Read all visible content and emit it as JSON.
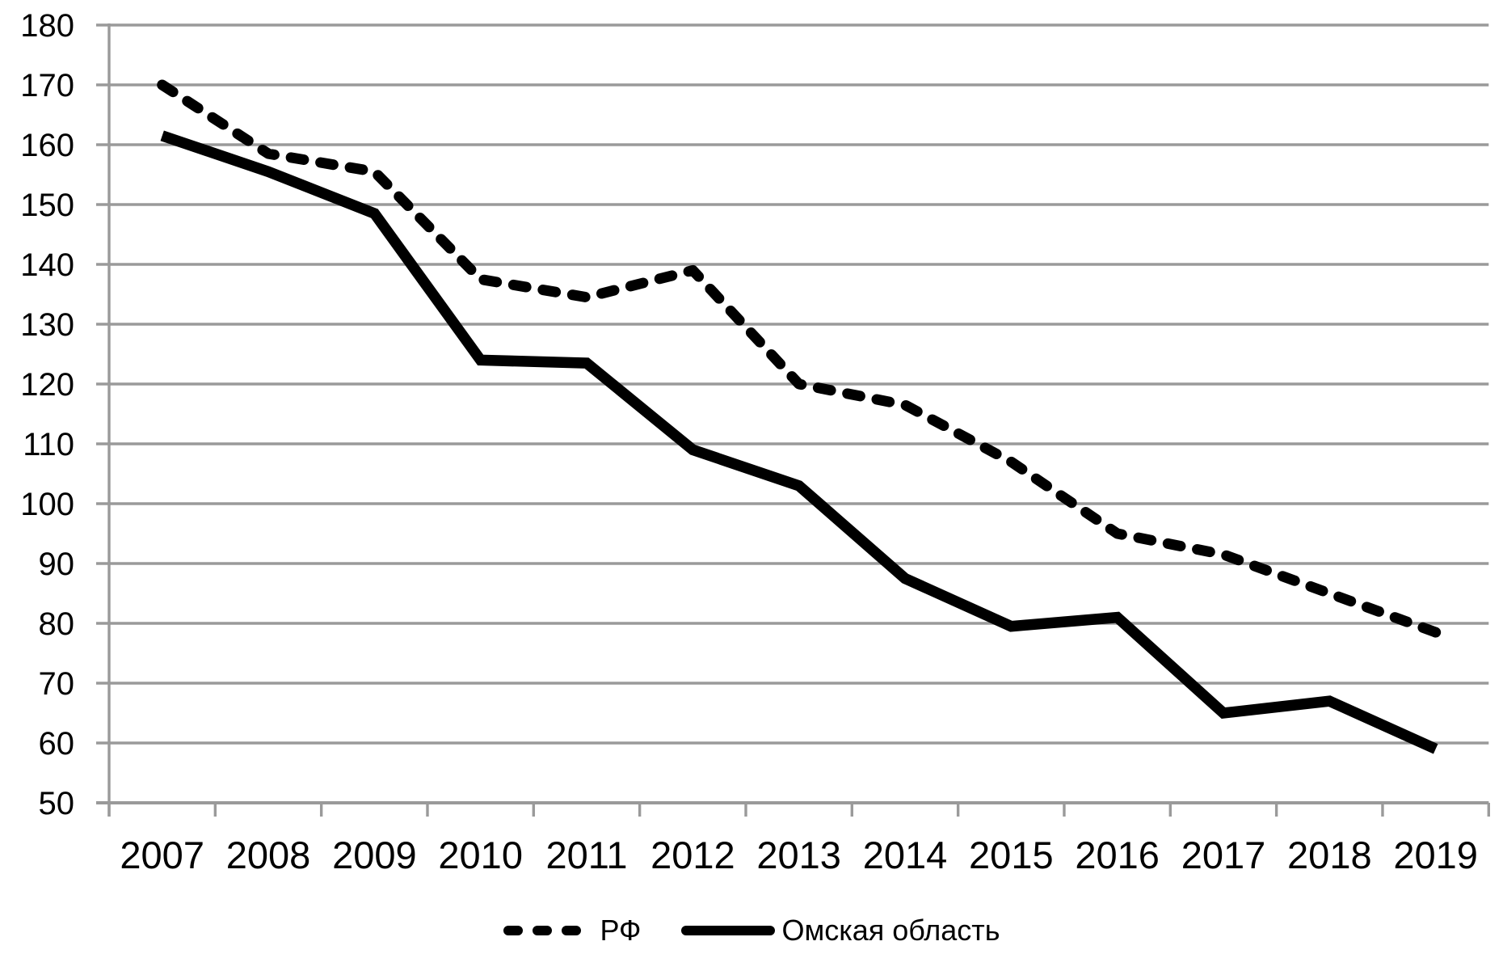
{
  "chart_data": {
    "type": "line",
    "title": "",
    "xlabel": "",
    "ylabel": "",
    "categories": [
      "2007",
      "2008",
      "2009",
      "2010",
      "2011",
      "2012",
      "2013",
      "2014",
      "2015",
      "2016",
      "2017",
      "2018",
      "2019"
    ],
    "series": [
      {
        "name": "РФ",
        "line_style": "dashed",
        "values": [
          170,
          158.5,
          155.5,
          137.5,
          134.5,
          139,
          120,
          116.5,
          107,
          95,
          91.5,
          85,
          78.5
        ]
      },
      {
        "name": "Омская область",
        "line_style": "solid",
        "values": [
          161.5,
          155.5,
          148.5,
          124,
          123.5,
          109,
          103,
          87.5,
          79.5,
          81,
          65,
          67,
          59
        ]
      }
    ],
    "ylim": [
      50,
      180
    ],
    "ytick_step": 10,
    "y_tick_labels": [
      "180",
      "170",
      "160",
      "150",
      "140",
      "130",
      "120",
      "110",
      "100",
      "90",
      "80",
      "70",
      "60",
      "50"
    ],
    "grid": "horizontal",
    "legend_position": "bottom-center",
    "colors": {
      "series_line": "#000000",
      "gridline": "#9a9a9a",
      "axis": "#9a9a9a",
      "text": "#000000",
      "background": "#ffffff"
    }
  }
}
